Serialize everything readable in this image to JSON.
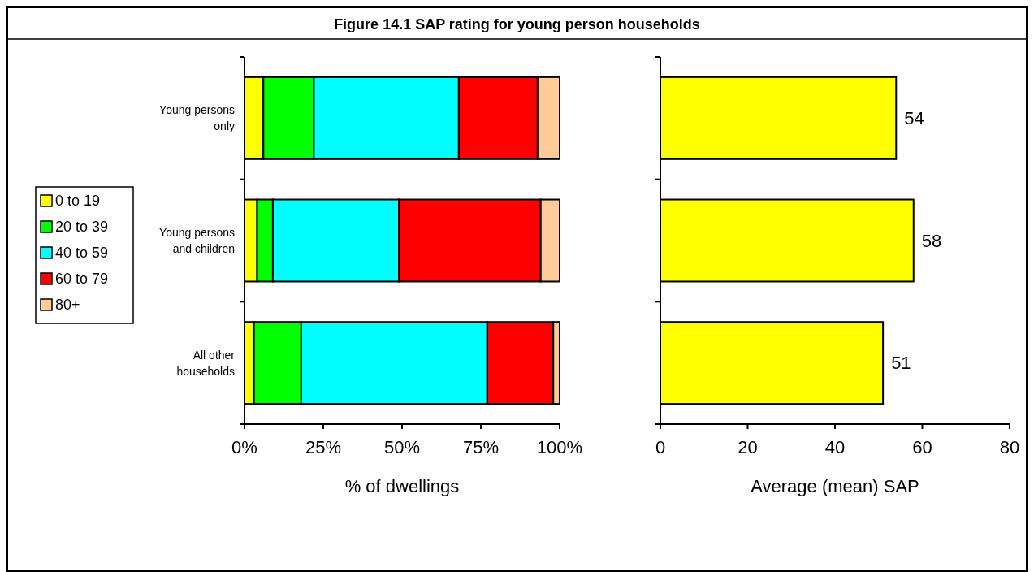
{
  "chart_data": [
    {
      "type": "bar",
      "title": "Figure 14.1 SAP rating for young person households",
      "orientation": "horizontal",
      "stacked": true,
      "categories": [
        "Young persons only",
        "Young persons and children",
        "All other households"
      ],
      "series": [
        {
          "name": "0 to 19",
          "color": "#ffff00",
          "values": [
            6,
            4,
            3
          ]
        },
        {
          "name": "20 to 39",
          "color": "#00ff00",
          "values": [
            16,
            5,
            15
          ]
        },
        {
          "name": "40 to 59",
          "color": "#00ffff",
          "values": [
            46,
            40,
            59
          ]
        },
        {
          "name": "60 to 79",
          "color": "#ff0000",
          "values": [
            25,
            45,
            21
          ]
        },
        {
          "name": "80+",
          "color": "#ffcc99",
          "values": [
            7,
            6,
            2
          ]
        }
      ],
      "xlim": [
        0,
        100
      ],
      "xticks": [
        {
          "value": 0,
          "label": "0%"
        },
        {
          "value": 25,
          "label": "25%"
        },
        {
          "value": 50,
          "label": "50%"
        },
        {
          "value": 75,
          "label": "75%"
        },
        {
          "value": 100,
          "label": "100%"
        }
      ],
      "xlabel": "% of dwellings",
      "legend": "left"
    },
    {
      "type": "bar",
      "orientation": "horizontal",
      "values": [
        54,
        58,
        51
      ],
      "color": "#ffff00",
      "data_labels": true,
      "xlim": [
        0,
        80
      ],
      "xticks": [
        0,
        20,
        40,
        60,
        80
      ],
      "xlabel": "Average (mean) SAP",
      "tick_labels": "x"
    }
  ]
}
